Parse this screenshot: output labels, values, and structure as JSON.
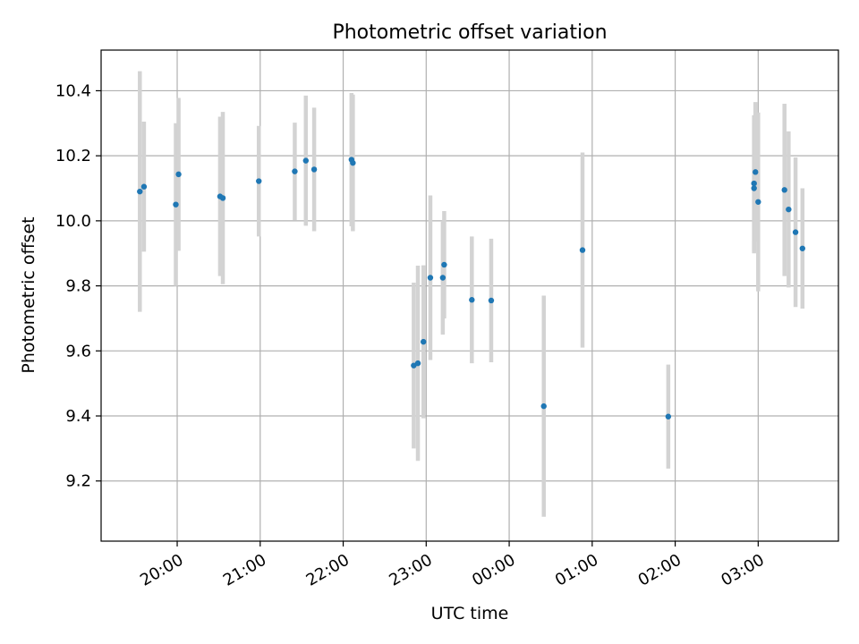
{
  "chart_data": {
    "type": "scatter",
    "title": "Photometric offset variation",
    "xlabel": "UTC time",
    "ylabel": "Photometric offset",
    "x_is_time_of_night": true,
    "xticks": [
      {
        "t": "20:00",
        "label": "20:00"
      },
      {
        "t": "21:00",
        "label": "21:00"
      },
      {
        "t": "22:00",
        "label": "22:00"
      },
      {
        "t": "23:00",
        "label": "23:00"
      },
      {
        "t": "00:00",
        "label": "00:00"
      },
      {
        "t": "01:00",
        "label": "01:00"
      },
      {
        "t": "02:00",
        "label": "02:00"
      },
      {
        "t": "03:00",
        "label": "03:00"
      }
    ],
    "yticks": [
      {
        "v": 9.2,
        "label": "9.2"
      },
      {
        "v": 9.4,
        "label": "9.4"
      },
      {
        "v": 9.6,
        "label": "9.6"
      },
      {
        "v": 9.8,
        "label": "9.8"
      },
      {
        "v": 10.0,
        "label": "10.0"
      },
      {
        "v": 10.2,
        "label": "10.2"
      },
      {
        "v": 10.4,
        "label": "10.4"
      }
    ],
    "xlim": [
      "19:05",
      "03:58"
    ],
    "ylim": [
      9.015,
      10.525
    ],
    "grid": true,
    "marker_color": "#1f77b4",
    "errorbar_color": "#d3d3d3",
    "points": [
      {
        "t": "19:33",
        "y": 10.09,
        "err": 0.37
      },
      {
        "t": "19:36",
        "y": 10.105,
        "err": 0.2
      },
      {
        "t": "19:59",
        "y": 10.05,
        "err": 0.25
      },
      {
        "t": "20:01",
        "y": 10.143,
        "err": 0.235
      },
      {
        "t": "20:31",
        "y": 10.075,
        "err": 0.245
      },
      {
        "t": "20:33",
        "y": 10.07,
        "err": 0.265
      },
      {
        "t": "20:59",
        "y": 10.122,
        "err": 0.17
      },
      {
        "t": "21:25",
        "y": 10.152,
        "err": 0.15
      },
      {
        "t": "21:33",
        "y": 10.185,
        "err": 0.2
      },
      {
        "t": "21:39",
        "y": 10.158,
        "err": 0.19
      },
      {
        "t": "22:06",
        "y": 10.188,
        "err": 0.205
      },
      {
        "t": "22:07",
        "y": 10.178,
        "err": 0.21
      },
      {
        "t": "22:51",
        "y": 9.555,
        "err": 0.255
      },
      {
        "t": "22:54",
        "y": 9.562,
        "err": 0.3
      },
      {
        "t": "22:58",
        "y": 9.628,
        "err": 0.235
      },
      {
        "t": "23:03",
        "y": 9.825,
        "err": 0.253
      },
      {
        "t": "23:12",
        "y": 9.825,
        "err": 0.175
      },
      {
        "t": "23:13",
        "y": 9.865,
        "err": 0.165
      },
      {
        "t": "23:33",
        "y": 9.757,
        "err": 0.195
      },
      {
        "t": "23:47",
        "y": 9.755,
        "err": 0.19
      },
      {
        "t": "00:25",
        "y": 9.43,
        "err": 0.34
      },
      {
        "t": "00:53",
        "y": 9.91,
        "err": 0.3
      },
      {
        "t": "01:55",
        "y": 9.398,
        "err": 0.16
      },
      {
        "t": "02:57",
        "y": 10.115,
        "err": 0.21
      },
      {
        "t": "02:57",
        "y": 10.1,
        "err": 0.2
      },
      {
        "t": "02:58",
        "y": 10.15,
        "err": 0.215
      },
      {
        "t": "03:00",
        "y": 10.058,
        "err": 0.275
      },
      {
        "t": "03:19",
        "y": 10.095,
        "err": 0.265
      },
      {
        "t": "03:22",
        "y": 10.035,
        "err": 0.24
      },
      {
        "t": "03:27",
        "y": 9.965,
        "err": 0.23
      },
      {
        "t": "03:32",
        "y": 9.915,
        "err": 0.185
      }
    ]
  }
}
